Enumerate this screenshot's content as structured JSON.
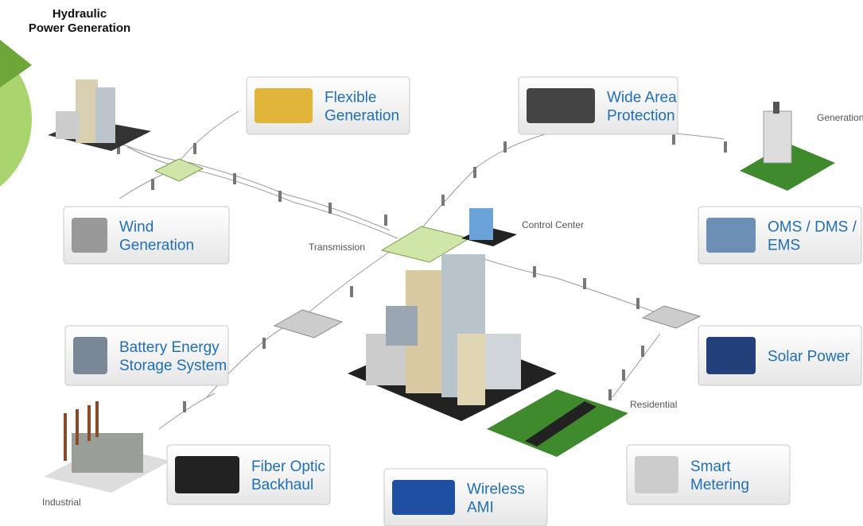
{
  "header": {
    "title": [
      "Hydraulic",
      "Power Generation"
    ]
  },
  "cards": [
    {
      "label": [
        "Flexible",
        "Generation"
      ]
    },
    {
      "label": [
        "Wide Area",
        "Protection"
      ]
    },
    {
      "label": [
        "Wind",
        "Generation"
      ]
    },
    {
      "label": [
        "OMS / DMS /",
        "EMS"
      ]
    },
    {
      "label": [
        "Battery Energy",
        "Storage System"
      ]
    },
    {
      "label": [
        "Solar Power"
      ]
    },
    {
      "label": [
        "Fiber Optic",
        "Backhaul"
      ]
    },
    {
      "label": [
        "Wireless",
        "AMI"
      ]
    },
    {
      "label": [
        "Smart",
        "Metering"
      ]
    }
  ],
  "labels": [
    "Transmission",
    "Control Center",
    "Residential",
    "Industrial",
    "Generation"
  ]
}
